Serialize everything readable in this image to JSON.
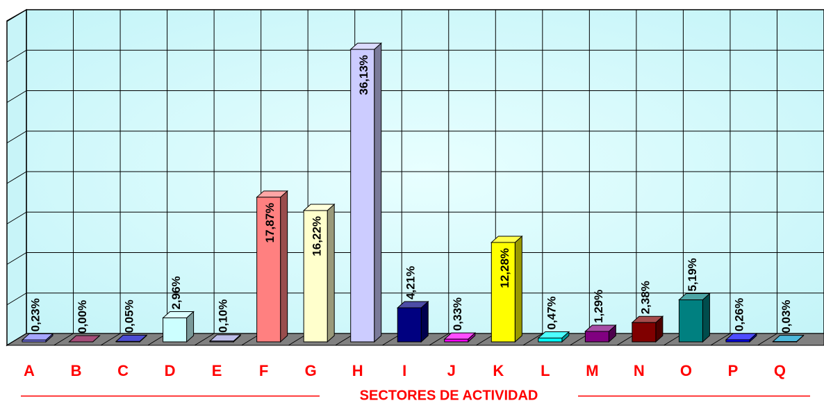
{
  "chart_data": {
    "type": "bar3d",
    "x_label": "SECTORES DE ACTIVIDAD",
    "categories": [
      "A",
      "B",
      "C",
      "D",
      "E",
      "F",
      "G",
      "H",
      "I",
      "J",
      "K",
      "L",
      "M",
      "N",
      "O",
      "P",
      "Q"
    ],
    "values": [
      0.23,
      0,
      0.05,
      2.96,
      0.1,
      17.87,
      16.22,
      36.13,
      4.21,
      0.33,
      12.28,
      0.47,
      1.29,
      2.38,
      5.19,
      0.26,
      0.03
    ],
    "value_labels": [
      "0,23%",
      "0,00%",
      "0,05%",
      "2,96%",
      "0,10%",
      "17,87%",
      "16,22%",
      "36,13%",
      "4,21%",
      "0,33%",
      "12,28%",
      "0,47%",
      "1,29%",
      "2,38%",
      "5,19%",
      "0,26%",
      "0,03%"
    ],
    "colors": [
      "#8080ff",
      "#800040",
      "#0000c0",
      "#ccffff",
      "#a0a0e0",
      "#ff8080",
      "#ffffcc",
      "#ccccff",
      "#000080",
      "#ff00ff",
      "#ffff00",
      "#00ffff",
      "#800080",
      "#800000",
      "#008080",
      "#0000ff",
      "#0099cc"
    ],
    "ylim": [
      0,
      40
    ],
    "yticks": [
      0,
      5,
      10,
      15,
      20,
      25,
      30,
      35,
      40
    ],
    "grid": true
  }
}
